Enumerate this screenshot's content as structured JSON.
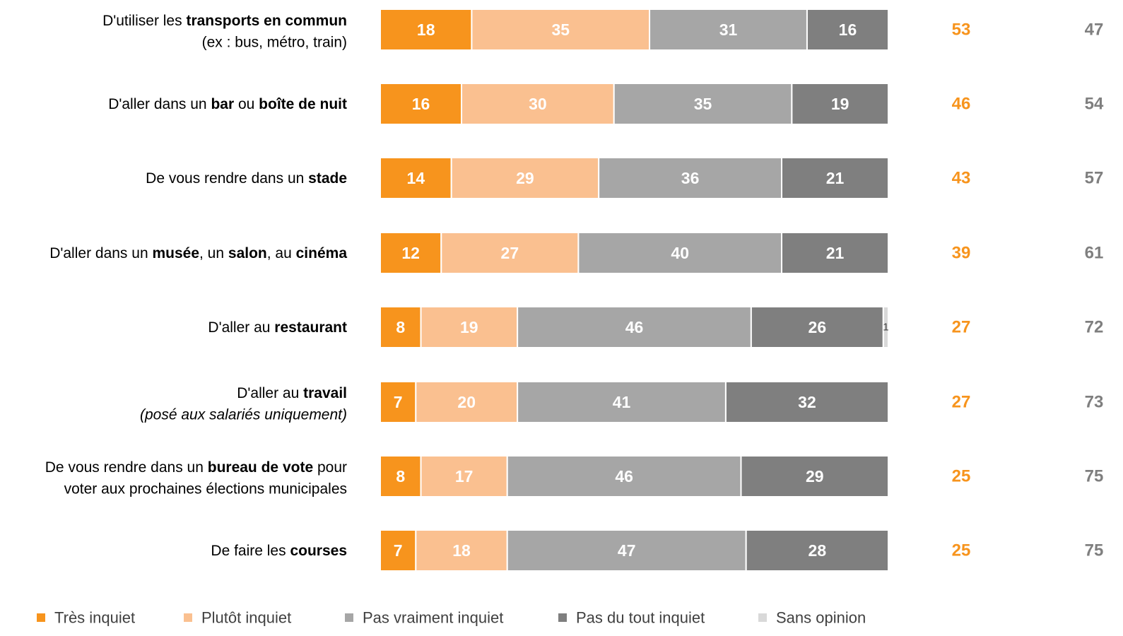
{
  "chart_data": {
    "type": "bar",
    "orientation": "horizontal",
    "stacked": true,
    "categories": [
      [
        {
          "t": "D'utiliser les ",
          "b": false
        },
        {
          "t": "transports en commun",
          "b": true
        }
      ],
      [
        {
          "t": "D'aller dans un ",
          "b": false
        },
        {
          "t": "bar",
          "b": true
        },
        {
          "t": " ou ",
          "b": false
        },
        {
          "t": "boîte de nuit",
          "b": true
        }
      ],
      [
        {
          "t": "De vous rendre dans un ",
          "b": false
        },
        {
          "t": "stade",
          "b": true
        }
      ],
      [
        {
          "t": "D'aller dans un ",
          "b": false
        },
        {
          "t": "musée",
          "b": true
        },
        {
          "t": ", un ",
          "b": false
        },
        {
          "t": "salon",
          "b": true
        },
        {
          "t": ", au ",
          "b": false
        },
        {
          "t": "cinéma",
          "b": true
        }
      ],
      [
        {
          "t": "D'aller au ",
          "b": false
        },
        {
          "t": "restaurant",
          "b": true
        }
      ],
      [
        {
          "t": "D'aller au ",
          "b": false
        },
        {
          "t": "travail",
          "b": true
        }
      ],
      [
        {
          "t": "De vous rendre dans un ",
          "b": false
        },
        {
          "t": "bureau de vote",
          "b": true
        },
        {
          "t": " pour",
          "b": false
        }
      ],
      [
        {
          "t": "De faire les ",
          "b": false
        },
        {
          "t": "courses",
          "b": true
        }
      ]
    ],
    "category_sublines": [
      {
        "text": "(ex : bus, métro, train)",
        "italic": false
      },
      null,
      null,
      null,
      null,
      {
        "text": "(posé aux salariés uniquement)",
        "italic": true
      },
      {
        "text": "voter aux prochaines élections municipales",
        "italic": false
      },
      null
    ],
    "series": [
      {
        "name": "Très inquiet",
        "color": "#f7941d",
        "values": [
          18,
          16,
          14,
          12,
          8,
          7,
          8,
          7
        ]
      },
      {
        "name": "Plutôt inquiet",
        "color": "#fac090",
        "values": [
          35,
          30,
          29,
          27,
          19,
          20,
          17,
          18
        ]
      },
      {
        "name": "Pas vraiment inquiet",
        "color": "#a6a6a6",
        "values": [
          31,
          35,
          36,
          40,
          46,
          41,
          46,
          47
        ]
      },
      {
        "name": "Pas du tout inquiet",
        "color": "#7f7f7f",
        "values": [
          16,
          19,
          21,
          21,
          26,
          32,
          29,
          28
        ]
      },
      {
        "name": "Sans opinion",
        "color": "#d9d9d9",
        "values": [
          0,
          0,
          0,
          0,
          1,
          0,
          0,
          0
        ]
      }
    ],
    "totals_inquiet": [
      53,
      46,
      43,
      39,
      27,
      27,
      25,
      25
    ],
    "totals_pas_inquiet": [
      47,
      54,
      57,
      61,
      72,
      73,
      75,
      75
    ],
    "xlim": [
      0,
      100
    ],
    "legend_position": "bottom"
  }
}
